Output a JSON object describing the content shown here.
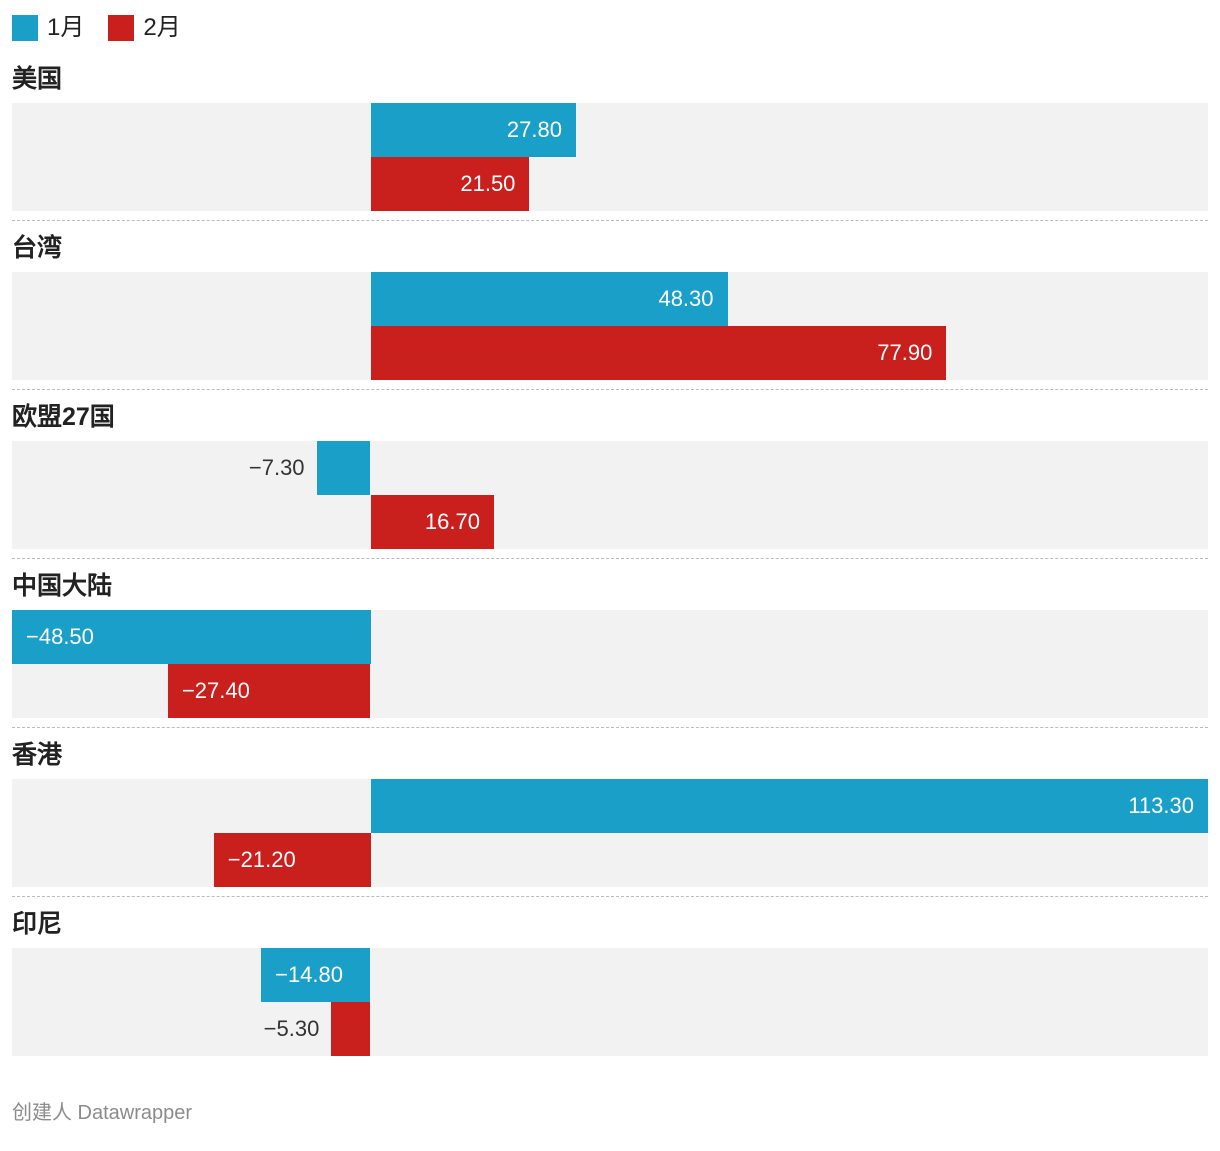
{
  "legend": {
    "items": [
      {
        "label": "1月",
        "color": "#1aa0c8"
      },
      {
        "label": "2月",
        "color": "#c9201d"
      }
    ]
  },
  "footer": {
    "text": "创建人 Datawrapper"
  },
  "colors": {
    "series1": "#1aa0c8",
    "series2": "#c9201d",
    "track": "#f2f2f2",
    "separator": "#bbbbbb",
    "label_inside": "#ffffff",
    "label_outside": "#333333",
    "footer_text": "#8c8c8c"
  },
  "chart_data": {
    "type": "bar",
    "orientation": "horizontal",
    "title": "",
    "xlabel": "",
    "ylabel": "",
    "grid": false,
    "legend_position": "top",
    "categories": [
      "美国",
      "台湾",
      "欧盟27国",
      "中国大陆",
      "香港",
      "印尼"
    ],
    "series": [
      {
        "name": "1月",
        "color": "#1aa0c8",
        "values": [
          27.8,
          48.3,
          -7.3,
          -48.5,
          113.3,
          -14.8
        ]
      },
      {
        "name": "2月",
        "color": "#c9201d",
        "values": [
          21.5,
          77.9,
          16.7,
          -27.4,
          -21.2,
          -5.3
        ]
      }
    ],
    "value_labels": [
      [
        "27.80",
        "48.30",
        "−7.30",
        "−48.50",
        "113.30",
        "−14.80"
      ],
      [
        "21.50",
        "77.90",
        "16.70",
        "−27.40",
        "−21.20",
        "−5.30"
      ]
    ],
    "xlim": [
      -48.5,
      113.3
    ],
    "attribution": "创建人 Datawrapper"
  }
}
